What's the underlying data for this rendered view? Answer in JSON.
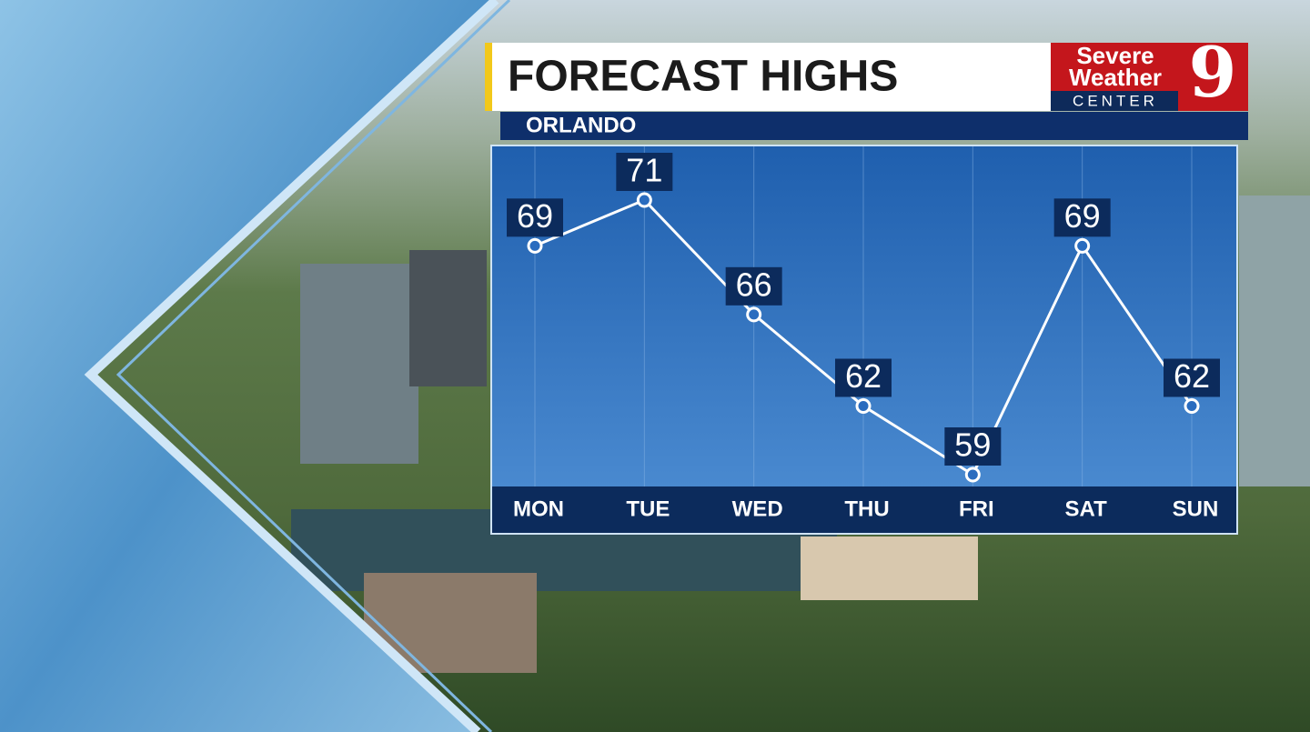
{
  "chart_data": {
    "type": "line",
    "title": "FORECAST HIGHS",
    "subtitle": "ORLANDO",
    "categories": [
      "MON",
      "TUE",
      "WED",
      "THU",
      "FRI",
      "SAT",
      "SUN"
    ],
    "values": [
      69,
      71,
      66,
      62,
      59,
      69,
      62
    ],
    "color": "#ffffff"
  },
  "logo": {
    "line1": "Severe",
    "line2": "Weather",
    "line3": "CENTER",
    "number": "9"
  }
}
